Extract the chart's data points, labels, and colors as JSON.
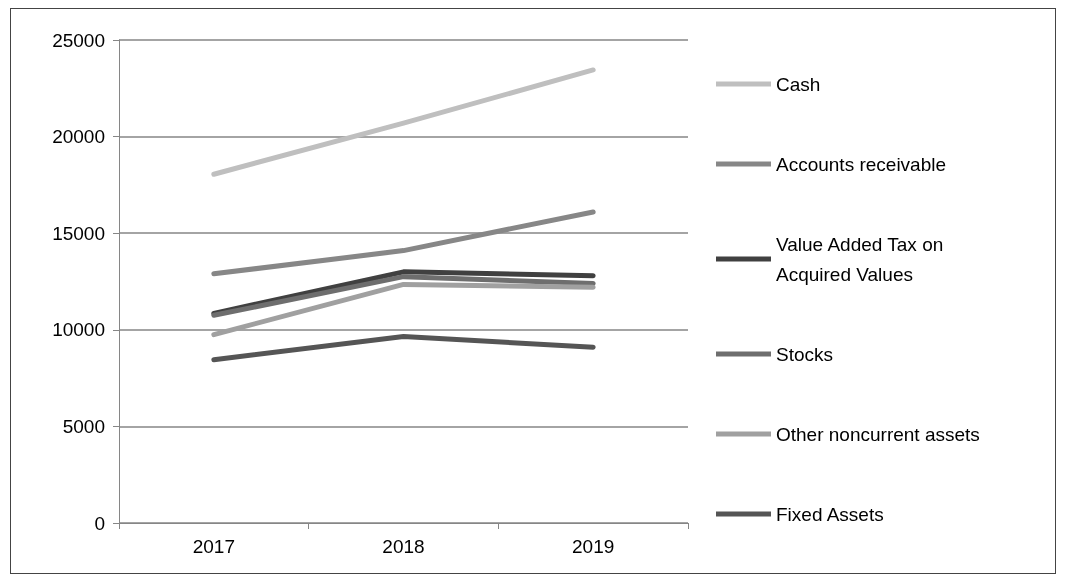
{
  "chart_data": {
    "type": "line",
    "categories": [
      "2017",
      "2018",
      "2019"
    ],
    "series": [
      {
        "name": "Cash",
        "color": "#bfbfbf",
        "values": [
          18050,
          20700,
          23450
        ]
      },
      {
        "name": "Accounts receivable",
        "color": "#878787",
        "values": [
          12900,
          14100,
          16100
        ]
      },
      {
        "name": "Value Added Tax on Acquired Values",
        "color": "#404040",
        "values": [
          10850,
          13000,
          12800
        ]
      },
      {
        "name": "Stocks",
        "color": "#6e6e6e",
        "values": [
          10750,
          12750,
          12400
        ]
      },
      {
        "name": "Other noncurrent assets",
        "color": "#a0a0a0",
        "values": [
          9750,
          12350,
          12200
        ]
      },
      {
        "name": "Fixed Assets",
        "color": "#555555",
        "values": [
          8450,
          9650,
          9100
        ]
      }
    ],
    "ylim": [
      0,
      25000
    ],
    "yticks": [
      0,
      5000,
      10000,
      15000,
      20000,
      25000
    ],
    "grid": "y",
    "legend": "right",
    "marker": "none",
    "line_style": "solid"
  }
}
